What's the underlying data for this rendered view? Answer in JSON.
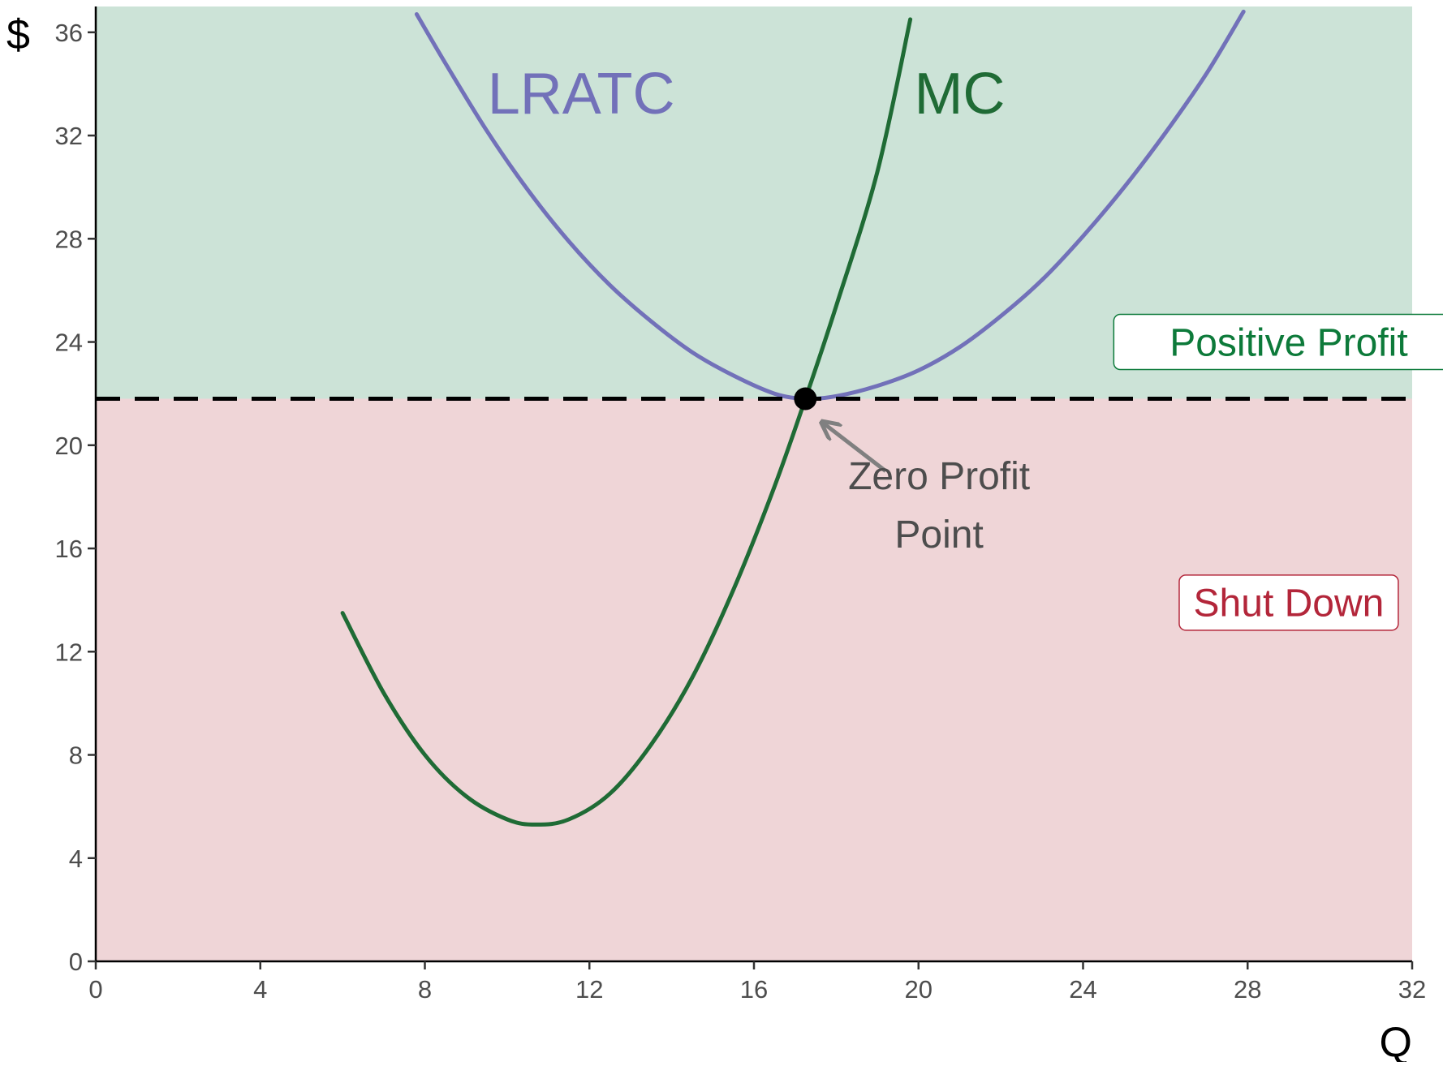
{
  "chart_data": {
    "type": "line",
    "xlabel": "Q",
    "ylabel": "$",
    "xlim": [
      0,
      32
    ],
    "ylim": [
      0,
      37
    ],
    "xticks": [
      0,
      4,
      8,
      12,
      16,
      20,
      24,
      28,
      32
    ],
    "yticks": [
      0,
      4,
      8,
      12,
      16,
      20,
      24,
      28,
      32,
      36
    ],
    "grid": false,
    "legend": "none",
    "regions": [
      {
        "name": "positive-profit",
        "label": "Positive Profit",
        "y_from": 21.8,
        "y_to": 37,
        "fill": "#cce3d7",
        "text_color": "#0d7a3a"
      },
      {
        "name": "shut-down",
        "label": "Shut Down",
        "y_from": 0,
        "y_to": 21.8,
        "fill": "#efd5d7",
        "text_color": "#b3263a"
      }
    ],
    "series": [
      {
        "name": "LRATC",
        "color": "#7271b9",
        "label_at": [
          11.8,
          33.6
        ],
        "x": [
          7.8,
          8.5,
          9.5,
          10.5,
          11.5,
          12.5,
          13.5,
          14.5,
          15.5,
          16.5,
          17.25,
          18,
          19,
          20,
          21,
          22,
          23,
          24,
          25,
          26,
          27,
          27.9
        ],
        "y": [
          36.7,
          34.8,
          32.2,
          29.9,
          27.9,
          26.2,
          24.8,
          23.6,
          22.7,
          22.0,
          21.8,
          21.9,
          22.3,
          22.9,
          23.8,
          25.0,
          26.4,
          28.1,
          30.0,
          32.1,
          34.4,
          36.8
        ]
      },
      {
        "name": "MC",
        "color": "#1f6b35",
        "label_at": [
          21,
          33.6
        ],
        "x": [
          6,
          7,
          8,
          9,
          10,
          10.7,
          11.5,
          12.5,
          13.5,
          14.5,
          15.5,
          16.5,
          17.25,
          18,
          19,
          19.8
        ],
        "y": [
          13.5,
          10.4,
          8.0,
          6.4,
          5.5,
          5.3,
          5.5,
          6.5,
          8.4,
          11.0,
          14.4,
          18.4,
          21.8,
          25.4,
          30.6,
          36.5
        ]
      }
    ],
    "reference_lines": [
      {
        "name": "zero-profit-price",
        "y": 21.8,
        "style": "dashed",
        "color": "#000000"
      }
    ],
    "points": [
      {
        "name": "zero-profit-point",
        "x": 17.25,
        "y": 21.8,
        "color": "#000000"
      }
    ],
    "annotations": [
      {
        "text_lines": [
          "Zero Profit",
          "Point"
        ],
        "at": [
          20.5,
          18.3
        ],
        "arrow_from": [
          19.2,
          19.0
        ],
        "arrow_to": [
          17.65,
          20.9
        ],
        "color": "#4d4d4d",
        "arrow_color": "#808080"
      }
    ]
  }
}
